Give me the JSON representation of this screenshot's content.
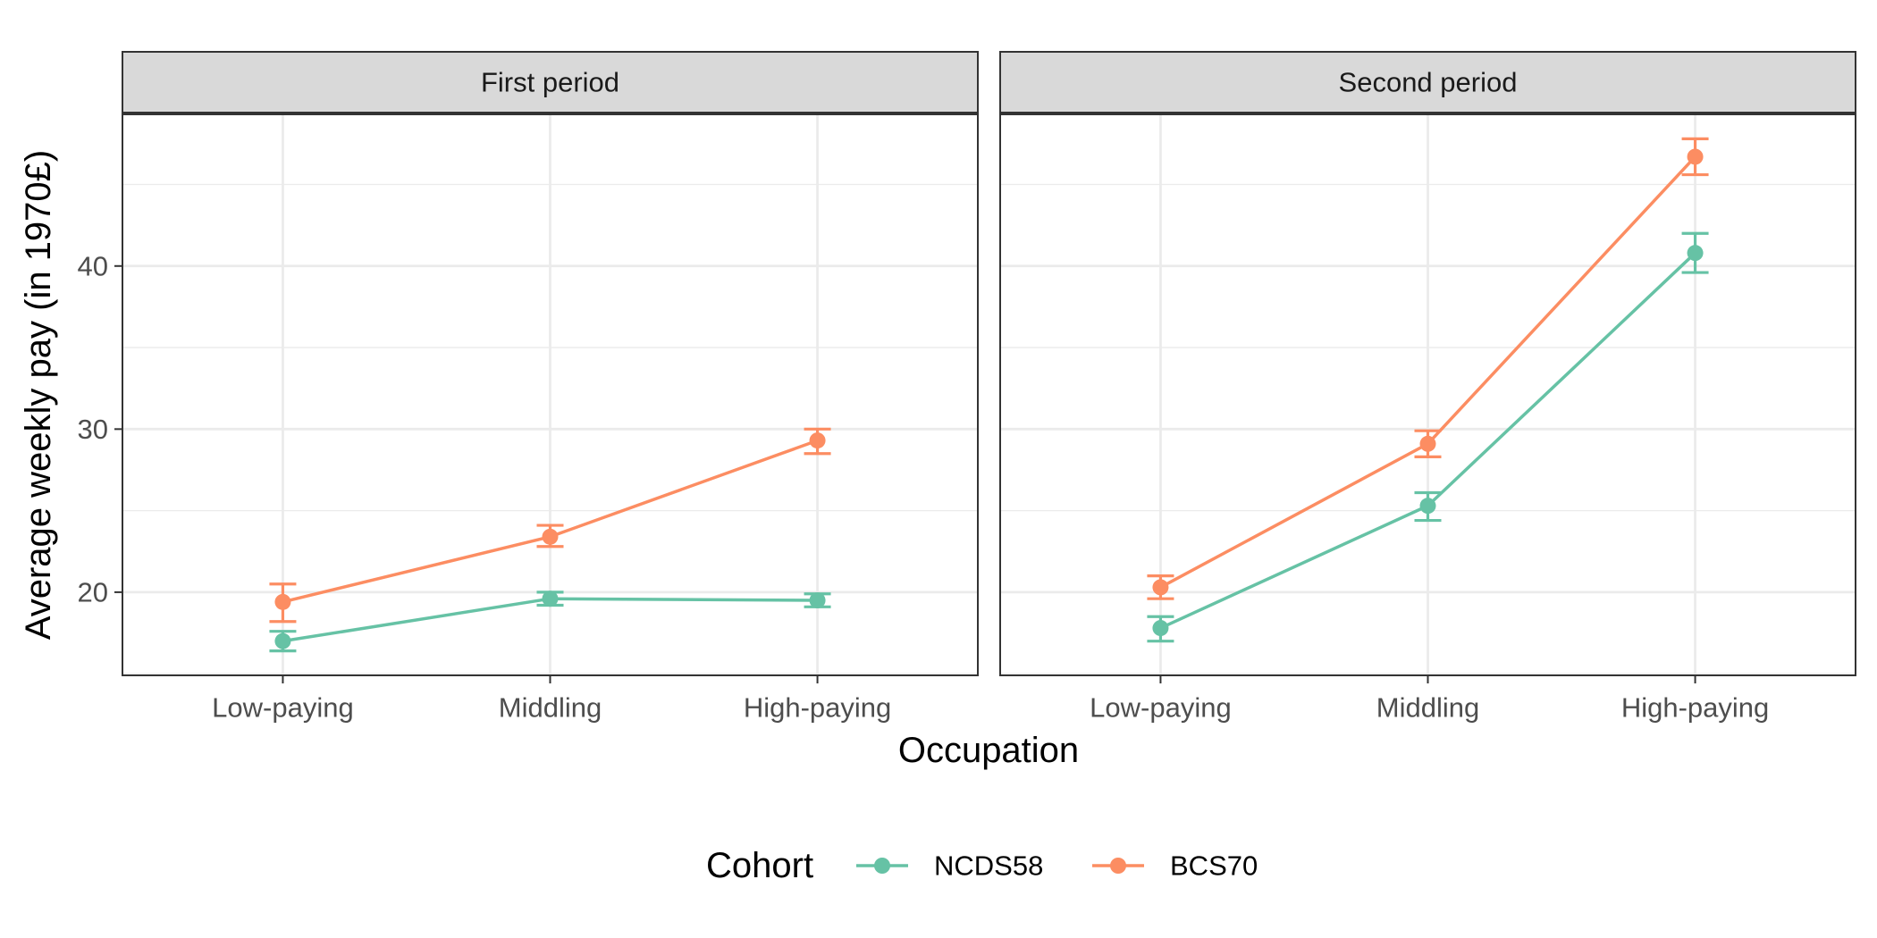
{
  "chart_data": {
    "type": "line",
    "xlabel": "Occupation",
    "ylabel": "Average weekly pay (in 1970£)",
    "categories": [
      "Low-paying",
      "Middling",
      "High-paying"
    ],
    "ylim": [
      14.9,
      49.3
    ],
    "yticks": [
      20,
      30,
      40
    ],
    "grid": true,
    "error_bars": true,
    "legend": {
      "title": "Cohort",
      "position": "bottom"
    },
    "panels": [
      {
        "title": "First period",
        "series": [
          {
            "name": "NCDS58",
            "color": "#66c2a5",
            "values": [
              17.0,
              19.6,
              19.5
            ],
            "lower": [
              16.4,
              19.2,
              19.1
            ],
            "upper": [
              17.6,
              20.0,
              19.9
            ]
          },
          {
            "name": "BCS70",
            "color": "#fc8d62",
            "values": [
              19.4,
              23.4,
              29.3
            ],
            "lower": [
              18.2,
              22.8,
              28.5
            ],
            "upper": [
              20.5,
              24.1,
              30.0
            ]
          }
        ]
      },
      {
        "title": "Second period",
        "series": [
          {
            "name": "NCDS58",
            "color": "#66c2a5",
            "values": [
              17.8,
              25.3,
              40.8
            ],
            "lower": [
              17.0,
              24.4,
              39.6
            ],
            "upper": [
              18.5,
              26.1,
              42.0
            ]
          },
          {
            "name": "BCS70",
            "color": "#fc8d62",
            "values": [
              20.3,
              29.1,
              46.7
            ],
            "lower": [
              19.6,
              28.3,
              45.6
            ],
            "upper": [
              21.0,
              29.9,
              47.8
            ]
          }
        ]
      }
    ]
  }
}
